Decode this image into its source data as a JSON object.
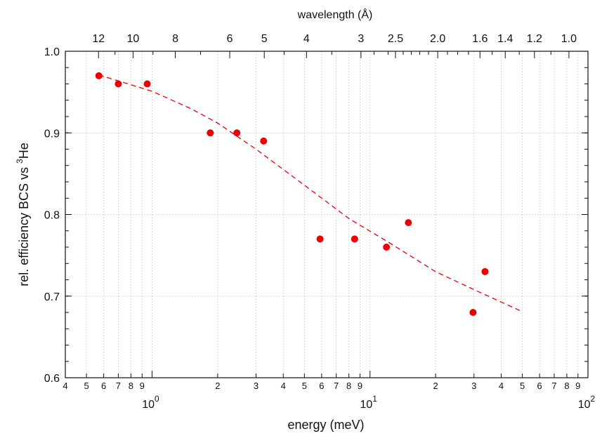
{
  "chart_data": {
    "type": "scatter",
    "title": "",
    "xlabel": "energy (meV)",
    "ylabel_main": "rel. efficiency BCS vs ",
    "ylabel_sup": "3",
    "ylabel_tail": "He",
    "top_axis_label": "wavelength (Å)",
    "x_scale": "log",
    "xlim": [
      0.4,
      100
    ],
    "ylim": [
      0.6,
      1.0
    ],
    "grid": true,
    "y_ticks": [
      {
        "value": 0.6,
        "label": "0.6"
      },
      {
        "value": 0.7,
        "label": "0.7"
      },
      {
        "value": 0.8,
        "label": "0.8"
      },
      {
        "value": 0.9,
        "label": "0.9"
      },
      {
        "value": 1.0,
        "label": "1.0"
      }
    ],
    "x_minor_tick_labels": [
      {
        "value": 0.4,
        "label": "4"
      },
      {
        "value": 0.5,
        "label": "5"
      },
      {
        "value": 0.6,
        "label": "6"
      },
      {
        "value": 0.7,
        "label": "7"
      },
      {
        "value": 0.8,
        "label": "8"
      },
      {
        "value": 0.9,
        "label": "9"
      },
      {
        "value": 2,
        "label": "2"
      },
      {
        "value": 3,
        "label": "3"
      },
      {
        "value": 4,
        "label": "4"
      },
      {
        "value": 5,
        "label": "5"
      },
      {
        "value": 6,
        "label": "6"
      },
      {
        "value": 7,
        "label": "7"
      },
      {
        "value": 8,
        "label": "8"
      },
      {
        "value": 9,
        "label": "9"
      },
      {
        "value": 20,
        "label": "2"
      },
      {
        "value": 30,
        "label": "3"
      },
      {
        "value": 40,
        "label": "4"
      },
      {
        "value": 50,
        "label": "5"
      },
      {
        "value": 60,
        "label": "6"
      },
      {
        "value": 70,
        "label": "7"
      },
      {
        "value": 80,
        "label": "8"
      },
      {
        "value": 90,
        "label": "9"
      }
    ],
    "x_decade_labels": [
      {
        "value": 1,
        "base": "10",
        "exp": "0"
      },
      {
        "value": 10,
        "base": "10",
        "exp": "1"
      },
      {
        "value": 100,
        "base": "10",
        "exp": "2"
      }
    ],
    "top_ticks": [
      {
        "wavelength": 12,
        "label": "12"
      },
      {
        "wavelength": 10,
        "label": "10"
      },
      {
        "wavelength": 8,
        "label": "8"
      },
      {
        "wavelength": 6,
        "label": "6"
      },
      {
        "wavelength": 5,
        "label": "5"
      },
      {
        "wavelength": 4,
        "label": "4"
      },
      {
        "wavelength": 3,
        "label": "3"
      },
      {
        "wavelength": 2.5,
        "label": "2.5"
      },
      {
        "wavelength": 2.0,
        "label": "2.0"
      },
      {
        "wavelength": 1.6,
        "label": "1.6"
      },
      {
        "wavelength": 1.4,
        "label": "1.4"
      },
      {
        "wavelength": 1.2,
        "label": "1.2"
      },
      {
        "wavelength": 1.0,
        "label": "1.0"
      }
    ],
    "top_minor_wavelengths": [
      11,
      9,
      7,
      4.5,
      3.5,
      2.8,
      2.6,
      2.4,
      2.3,
      2.2,
      2.1,
      1.9,
      1.8,
      1.7,
      1.5,
      1.3,
      1.1
    ],
    "series": [
      {
        "points": [
          {
            "x": 0.57,
            "y": 0.97
          },
          {
            "x": 0.7,
            "y": 0.96
          },
          {
            "x": 0.95,
            "y": 0.96
          },
          {
            "x": 1.85,
            "y": 0.9
          },
          {
            "x": 2.45,
            "y": 0.9
          },
          {
            "x": 3.25,
            "y": 0.89
          },
          {
            "x": 5.9,
            "y": 0.77
          },
          {
            "x": 8.5,
            "y": 0.77
          },
          {
            "x": 11.9,
            "y": 0.76
          },
          {
            "x": 15.0,
            "y": 0.79
          },
          {
            "x": 29.7,
            "y": 0.68
          },
          {
            "x": 33.7,
            "y": 0.73
          }
        ]
      }
    ],
    "fit": {
      "style": "dashed",
      "points": [
        {
          "x": 0.57,
          "y": 0.971
        },
        {
          "x": 0.8,
          "y": 0.959
        },
        {
          "x": 1.0,
          "y": 0.951
        },
        {
          "x": 1.5,
          "y": 0.93
        },
        {
          "x": 2.0,
          "y": 0.912
        },
        {
          "x": 3.0,
          "y": 0.88
        },
        {
          "x": 5.0,
          "y": 0.836
        },
        {
          "x": 8.0,
          "y": 0.795
        },
        {
          "x": 12.0,
          "y": 0.767
        },
        {
          "x": 20.0,
          "y": 0.73
        },
        {
          "x": 30.0,
          "y": 0.708
        },
        {
          "x": 49.0,
          "y": 0.682
        }
      ]
    },
    "colors": {
      "markers": "#ee0000",
      "fit_line": "#ee0000",
      "grid": "#bbbbbb",
      "axes": "#111111"
    }
  }
}
